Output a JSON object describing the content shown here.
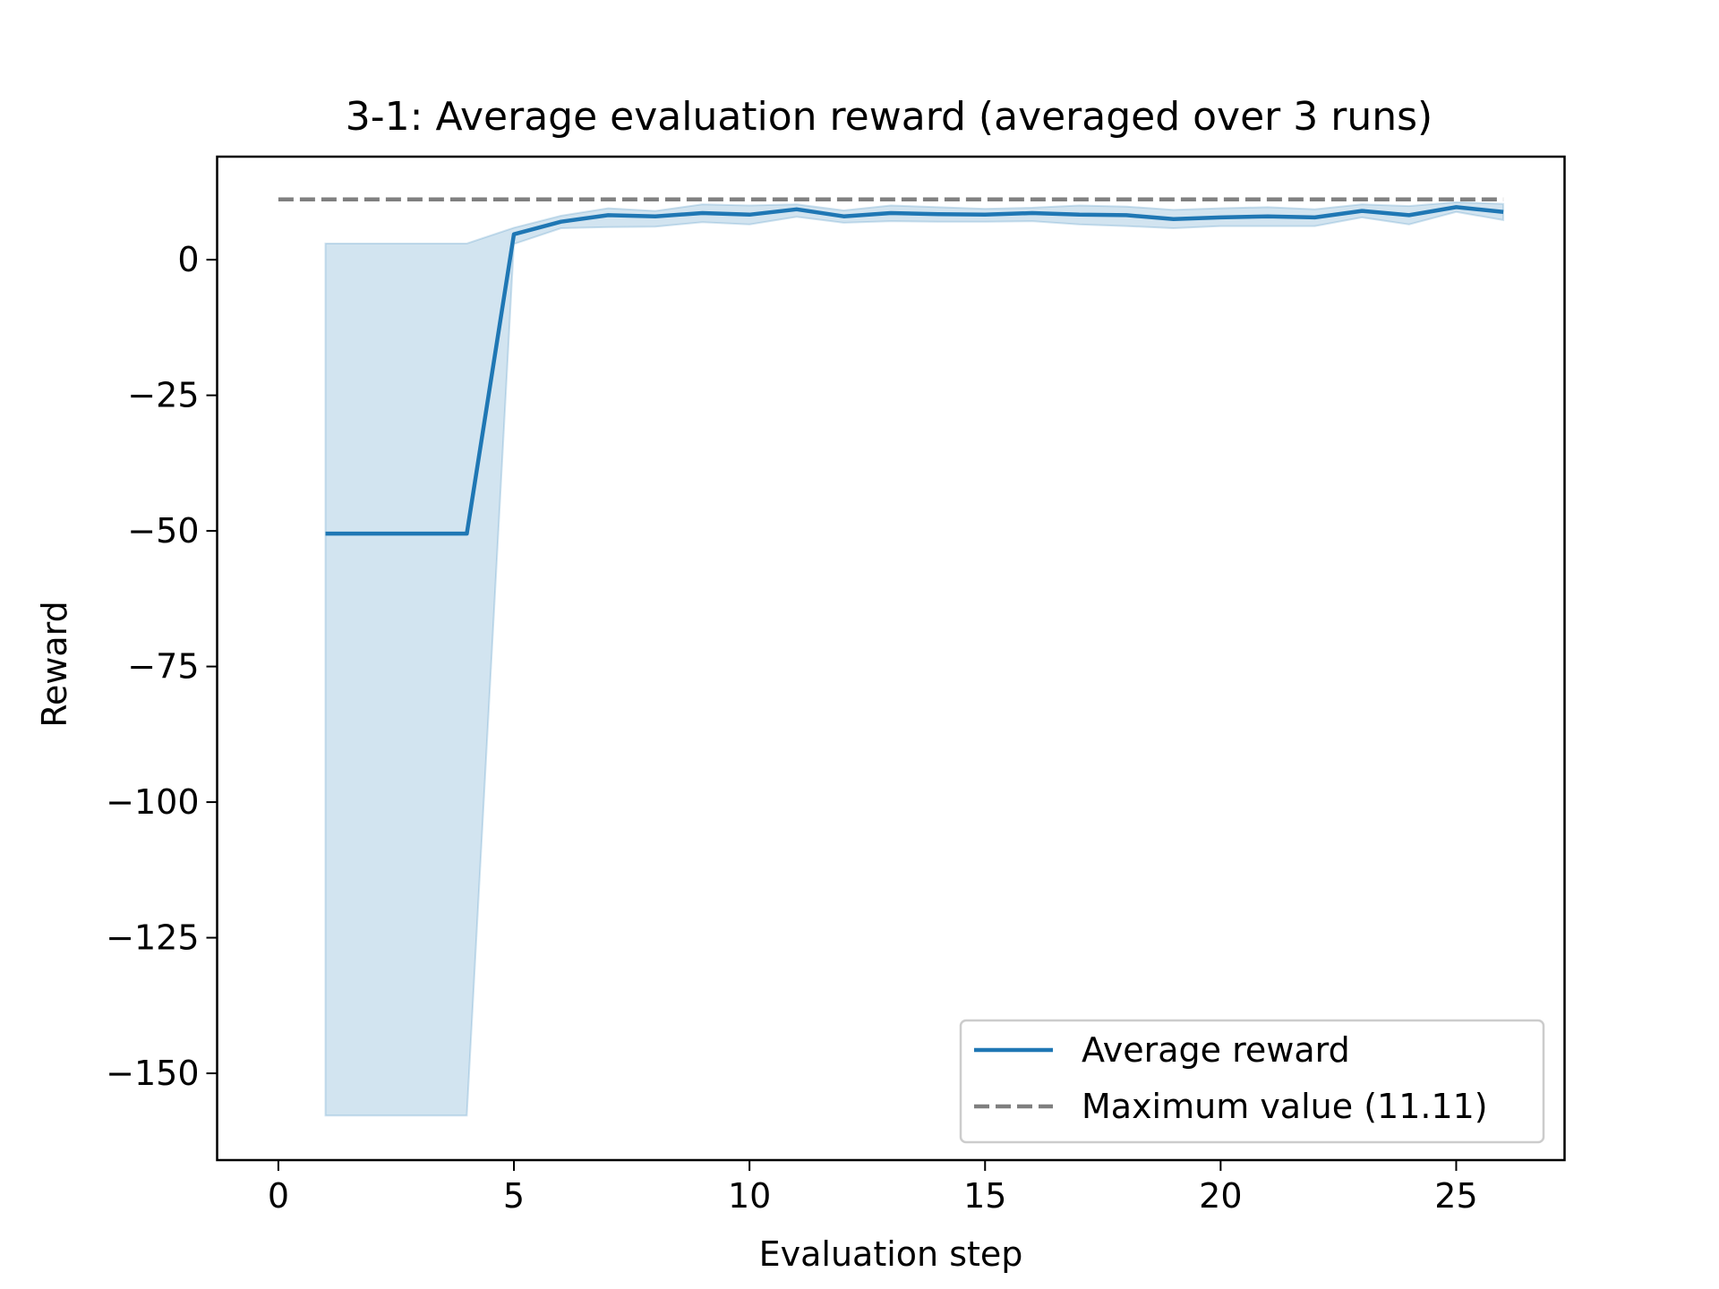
{
  "chart_data": {
    "type": "line",
    "title": "3-1: Average evaluation reward (averaged over 3 runs)",
    "xlabel": "Evaluation step",
    "ylabel": "Reward",
    "xlim": [
      -1.3,
      27.3
    ],
    "ylim": [
      -166,
      19
    ],
    "xticks": [
      0,
      5,
      10,
      15,
      20,
      25
    ],
    "yticks": [
      0,
      -25,
      -50,
      -75,
      -100,
      -125,
      -150
    ],
    "xtick_labels": [
      "0",
      "5",
      "10",
      "15",
      "20",
      "25"
    ],
    "ytick_labels": [
      "0",
      "−25",
      "−50",
      "−75",
      "−100",
      "−125",
      "−150"
    ],
    "grid": false,
    "legend_position": "lower right",
    "series": [
      {
        "name": "Average reward",
        "color": "#1f77b4",
        "x": [
          1,
          2,
          3,
          4,
          5,
          6,
          7,
          8,
          9,
          10,
          11,
          12,
          13,
          14,
          15,
          16,
          17,
          18,
          19,
          20,
          21,
          22,
          23,
          24,
          25,
          26
        ],
        "values": [
          -50.5,
          -50.5,
          -50.5,
          -50.5,
          4.7,
          7.0,
          8.2,
          8.0,
          8.6,
          8.3,
          9.3,
          8.0,
          8.6,
          8.4,
          8.3,
          8.6,
          8.3,
          8.2,
          7.5,
          7.8,
          8.0,
          7.8,
          9.0,
          8.2,
          9.7,
          8.8
        ],
        "band_lower": [
          -157.8,
          -157.8,
          -157.8,
          -157.8,
          2.9,
          5.8,
          6.0,
          6.1,
          6.9,
          6.5,
          7.9,
          6.8,
          7.1,
          7.0,
          7.0,
          7.1,
          6.5,
          6.2,
          5.8,
          6.2,
          6.2,
          6.2,
          7.8,
          6.5,
          8.8,
          7.3
        ],
        "band_upper": [
          3.0,
          3.0,
          3.0,
          3.0,
          5.9,
          8.1,
          9.5,
          9.0,
          10.2,
          10.0,
          10.2,
          9.1,
          10.0,
          9.7,
          9.4,
          9.6,
          10.0,
          9.8,
          9.2,
          9.5,
          9.7,
          9.3,
          10.2,
          9.9,
          10.6,
          10.3
        ],
        "band_color": "#1f77b4"
      },
      {
        "name": "Maximum value (11.11)",
        "color": "#7f7f7f",
        "style": "dashed",
        "x": [
          0,
          26
        ],
        "values": [
          11.11,
          11.11
        ]
      }
    ]
  }
}
